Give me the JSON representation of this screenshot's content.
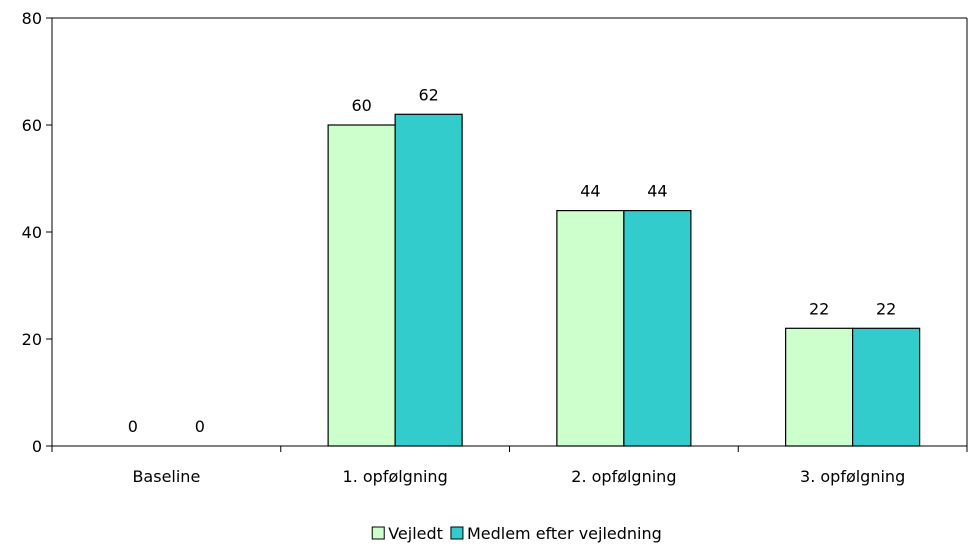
{
  "chart_data": {
    "type": "bar",
    "title": "",
    "xlabel": "",
    "ylabel": "",
    "categories": [
      "Baseline",
      "1. opfølgning",
      "2. opfølgning",
      "3. opfølgning"
    ],
    "series": [
      {
        "name": "Vejledt",
        "values": [
          0,
          60,
          44,
          22
        ],
        "color": "#ccffcc"
      },
      {
        "name": "Medlem efter vejledning",
        "values": [
          0,
          62,
          44,
          22
        ],
        "color": "#33cccc"
      }
    ],
    "ylim": [
      0,
      80
    ],
    "yticks": [
      0,
      20,
      40,
      60,
      80
    ],
    "data_labels": true,
    "grid": false,
    "legend_position": "bottom"
  }
}
